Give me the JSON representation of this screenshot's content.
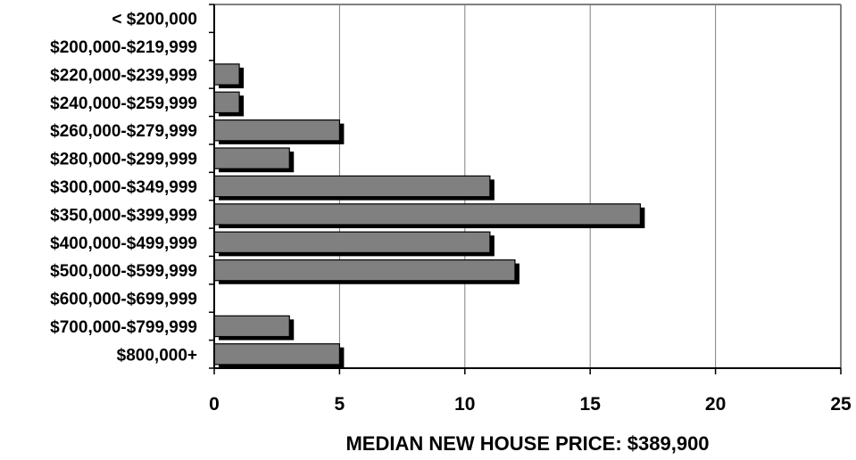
{
  "chart_data": {
    "type": "bar",
    "orientation": "horizontal",
    "categories": [
      "< $200,000",
      "$200,000-$219,999",
      "$220,000-$239,999",
      "$240,000-$259,999",
      "$260,000-$279,999",
      "$280,000-$299,999",
      "$300,000-$349,999",
      "$350,000-$399,999",
      "$400,000-$499,999",
      "$500,000-$599,999",
      "$600,000-$699,999",
      "$700,000-$799,999",
      "$800,000+"
    ],
    "values": [
      0,
      0,
      1,
      1,
      5,
      3,
      11,
      17,
      11,
      12,
      0,
      3,
      5
    ],
    "xticks": [
      "0",
      "5",
      "10",
      "15",
      "20",
      "25"
    ],
    "xlim": [
      0,
      25
    ],
    "xlabel": "MEDIAN NEW HOUSE PRICE:  $389,900",
    "ylabel": "",
    "title": "",
    "grid": "vertical",
    "colors": {
      "bar": "#808080",
      "shadow": "#000000",
      "grid": "#808080",
      "frame": "#808080"
    }
  }
}
